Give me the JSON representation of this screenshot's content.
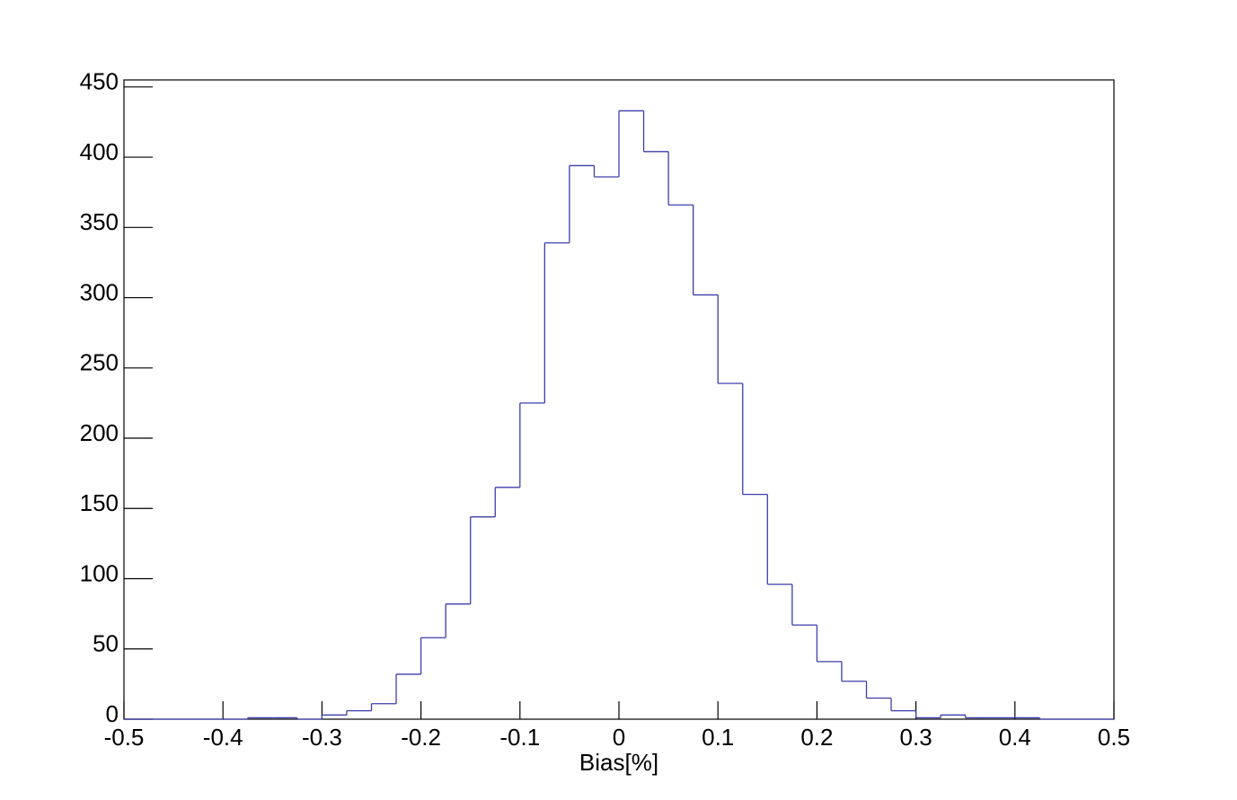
{
  "chart_data": {
    "type": "histogram",
    "x_label": "Bias[%]",
    "bins": [
      -0.5,
      -0.475,
      -0.45,
      -0.425,
      -0.4,
      -0.375,
      -0.35,
      -0.325,
      -0.3,
      -0.275,
      -0.25,
      -0.225,
      -0.2,
      -0.175,
      -0.15,
      -0.125,
      -0.1,
      -0.075,
      -0.05,
      -0.025,
      0,
      0.025,
      0.05,
      0.075,
      0.1,
      0.125,
      0.15,
      0.175,
      0.2,
      0.225,
      0.25,
      0.275,
      0.3,
      0.325,
      0.35,
      0.375,
      0.4,
      0.425,
      0.45,
      0.475,
      0.5
    ],
    "values": [
      0,
      0,
      0,
      0,
      0,
      1,
      1,
      0,
      3,
      6,
      11,
      32,
      58,
      82,
      144,
      165,
      225,
      339,
      394,
      386,
      433,
      404,
      366,
      302,
      239,
      160,
      96,
      67,
      41,
      27,
      15,
      6,
      1,
      3,
      1,
      1,
      1,
      0,
      0,
      0
    ],
    "color": "#3d3dab",
    "xlim": [
      -0.5,
      0.5
    ],
    "xticks": [
      -0.5,
      -0.4,
      -0.3,
      -0.2,
      -0.1,
      0,
      0.1,
      0.2,
      0.3,
      0.4,
      0.5
    ],
    "ylim": [
      0,
      455
    ],
    "yticks": [
      0,
      50,
      100,
      150,
      200,
      250,
      300,
      350,
      400,
      450
    ],
    "grid": false
  }
}
